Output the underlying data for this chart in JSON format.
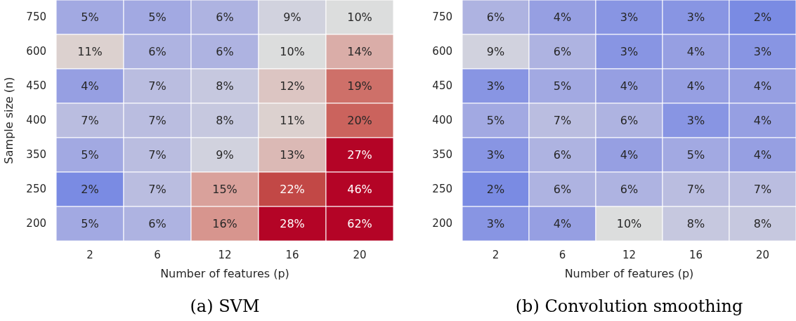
{
  "chart_data": [
    {
      "type": "heatmap",
      "title": "(a) SVM",
      "xlabel": "Number of features (p)",
      "ylabel": "Sample size (n)",
      "categories": [
        "2",
        "6",
        "12",
        "16",
        "20"
      ],
      "y_categories": [
        "750",
        "600",
        "450",
        "400",
        "350",
        "250",
        "200"
      ],
      "cells": [
        [
          5,
          5,
          6,
          9,
          10
        ],
        [
          11,
          6,
          6,
          10,
          14
        ],
        [
          4,
          7,
          8,
          12,
          19
        ],
        [
          7,
          7,
          8,
          11,
          20
        ],
        [
          5,
          7,
          9,
          13,
          27
        ],
        [
          2,
          7,
          15,
          22,
          46
        ],
        [
          5,
          6,
          16,
          28,
          62
        ]
      ],
      "cell_labels": [
        [
          "5%",
          "5%",
          "6%",
          "9%",
          "10%"
        ],
        [
          "11%",
          "6%",
          "6%",
          "10%",
          "14%"
        ],
        [
          "4%",
          "7%",
          "8%",
          "12%",
          "19%"
        ],
        [
          "7%",
          "7%",
          "8%",
          "11%",
          "20%"
        ],
        [
          "5%",
          "7%",
          "9%",
          "13%",
          "27%"
        ],
        [
          "2%",
          "7%",
          "15%",
          "22%",
          "46%"
        ],
        [
          "5%",
          "6%",
          "16%",
          "28%",
          "62%"
        ]
      ]
    },
    {
      "type": "heatmap",
      "title": "(b) Convolution smoothing",
      "xlabel": "Number of features (p)",
      "categories": [
        "2",
        "6",
        "12",
        "16",
        "20"
      ],
      "y_categories": [
        "750",
        "600",
        "450",
        "400",
        "350",
        "250",
        "200"
      ],
      "cells": [
        [
          6,
          4,
          3,
          3,
          2
        ],
        [
          9,
          6,
          3,
          4,
          3
        ],
        [
          3,
          5,
          4,
          4,
          4
        ],
        [
          5,
          7,
          6,
          3,
          4
        ],
        [
          3,
          6,
          4,
          5,
          4
        ],
        [
          2,
          6,
          6,
          7,
          7
        ],
        [
          3,
          4,
          10,
          8,
          8
        ]
      ],
      "cell_labels": [
        [
          "6%",
          "4%",
          "3%",
          "3%",
          "2%"
        ],
        [
          "9%",
          "6%",
          "3%",
          "4%",
          "3%"
        ],
        [
          "3%",
          "5%",
          "4%",
          "4%",
          "4%"
        ],
        [
          "5%",
          "7%",
          "6%",
          "3%",
          "4%"
        ],
        [
          "3%",
          "6%",
          "4%",
          "5%",
          "4%"
        ],
        [
          "2%",
          "6%",
          "6%",
          "7%",
          "7%"
        ],
        [
          "3%",
          "4%",
          "10%",
          "8%",
          "8%"
        ]
      ]
    }
  ]
}
